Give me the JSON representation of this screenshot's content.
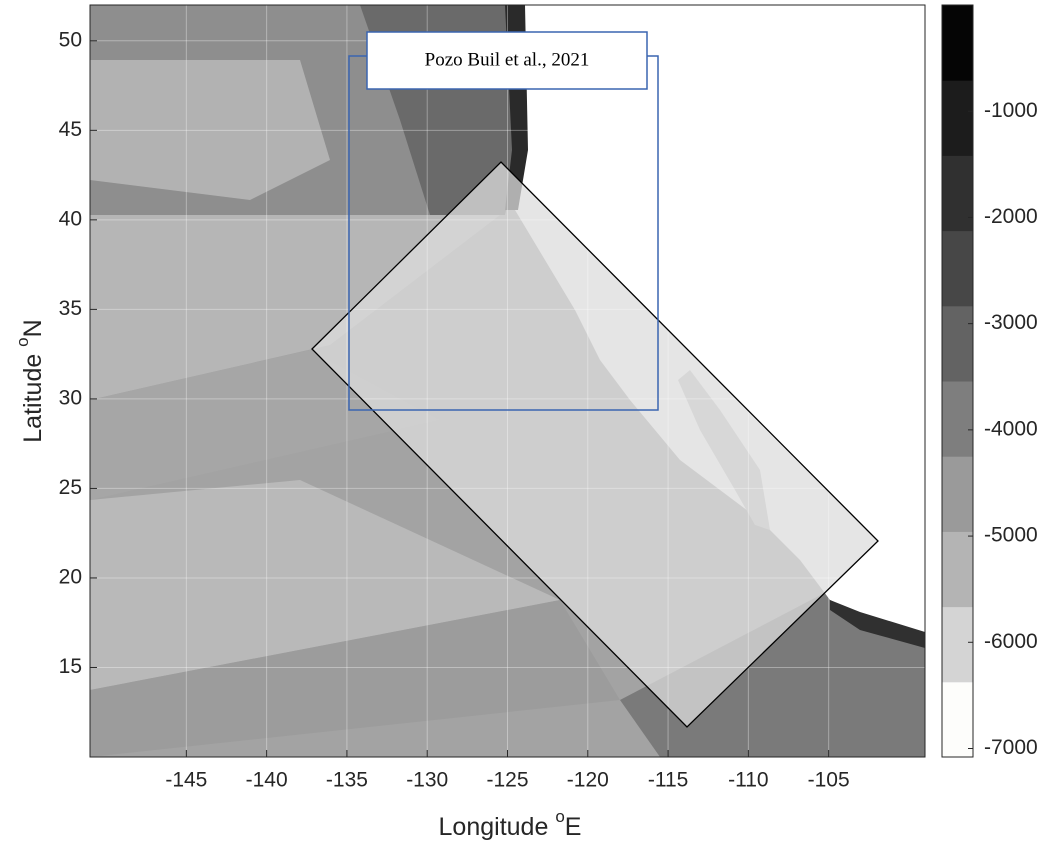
{
  "chart_data": {
    "type": "map",
    "x_label": {
      "main": "Longitude ",
      "sup": "o",
      "unit": "E"
    },
    "y_label": {
      "main": "Latitude ",
      "sup": "o",
      "unit": "N"
    },
    "xlim": [
      -151,
      -99
    ],
    "ylim": [
      10,
      52
    ],
    "xticks": [
      -145,
      -140,
      -135,
      -130,
      -125,
      -120,
      -115,
      -110,
      -105
    ],
    "yticks": [
      15,
      20,
      25,
      30,
      35,
      40,
      45,
      50
    ],
    "grid": true,
    "annotation": "Pozo Buil et al., 2021",
    "colorbar": {
      "clim": [
        -7080,
        0
      ],
      "ticks": [
        -1000,
        -2000,
        -3000,
        -4000,
        -5000,
        -6000,
        -7000
      ],
      "colors": [
        "#fdfdfb",
        "#d4d4d4",
        "#b4b4b4",
        "#9a9a9a",
        "#7e7e7e",
        "#636363",
        "#474747",
        "#303030",
        "#1c1c1c",
        "#050505"
      ]
    }
  }
}
